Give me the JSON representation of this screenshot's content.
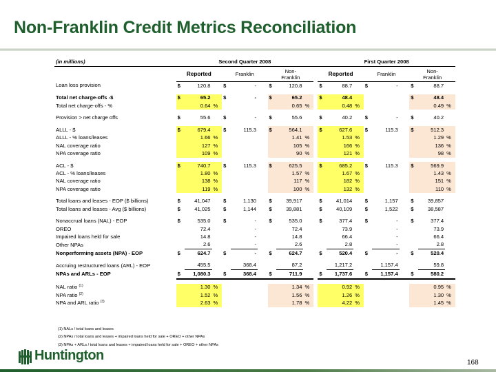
{
  "slide": {
    "title": "Non-Franklin Credit Metrics Reconciliation",
    "page_number": "168",
    "logo_text": "Huntington"
  },
  "table": {
    "units_label": "(in millions)",
    "period_headers": [
      "Second Quarter 2008",
      "First Quarter 2008"
    ],
    "column_headers": [
      "Reported",
      "Franklin",
      "Non-\nFranklin",
      "Reported",
      "Franklin",
      "Non-\nFranklin"
    ],
    "rows": [
      {
        "label": "Loan loss provision",
        "bold": false,
        "cells": [
          [
            "$",
            "120.8",
            ""
          ],
          [
            "$",
            "-",
            ""
          ],
          [
            "$",
            "120.8",
            ""
          ],
          [
            "$",
            "88.7",
            ""
          ],
          [
            "$",
            "-",
            ""
          ],
          [
            "$",
            "88.7",
            ""
          ]
        ],
        "hl": [
          false,
          false,
          false,
          false,
          false,
          false
        ]
      },
      {
        "spacer": true
      },
      {
        "label": "Total net charge-offs -$",
        "bold": true,
        "cells": [
          [
            "$",
            "65.2",
            ""
          ],
          [
            "$",
            "-",
            ""
          ],
          [
            "$",
            "65.2",
            ""
          ],
          [
            "$",
            "48.4",
            ""
          ],
          [
            "",
            "",
            ""
          ],
          [
            "$",
            "48.4",
            ""
          ]
        ],
        "hl": [
          "hl",
          false,
          "pk",
          "hl",
          false,
          "pk"
        ]
      },
      {
        "label": "Total net charge-offs - %",
        "bold": false,
        "cells": [
          [
            "",
            "0.64",
            "%"
          ],
          [
            "",
            "",
            ""
          ],
          [
            "",
            "0.65",
            "%"
          ],
          [
            "",
            "0.48",
            "%"
          ],
          [
            "",
            "",
            ""
          ],
          [
            "",
            "0.49",
            "%"
          ]
        ],
        "hl": [
          "hl",
          false,
          "pk",
          "hl",
          false,
          "pk"
        ]
      },
      {
        "spacer": true
      },
      {
        "label": "Provision > net charge offs",
        "bold": false,
        "cells": [
          [
            "$",
            "55.6",
            ""
          ],
          [
            "$",
            "-",
            ""
          ],
          [
            "$",
            "55.6",
            ""
          ],
          [
            "$",
            "40.2",
            ""
          ],
          [
            "$",
            "-",
            ""
          ],
          [
            "$",
            "40.2",
            ""
          ]
        ],
        "hl": [
          false,
          false,
          false,
          false,
          false,
          false
        ]
      },
      {
        "spacer": true
      },
      {
        "label": "ALLL - $",
        "bold": false,
        "cells": [
          [
            "$",
            "679.4",
            ""
          ],
          [
            "$",
            "115.3",
            ""
          ],
          [
            "$",
            "564.1",
            ""
          ],
          [
            "$",
            "627.6",
            ""
          ],
          [
            "$",
            "115.3",
            ""
          ],
          [
            "$",
            "512.3",
            ""
          ]
        ],
        "hl": [
          "hl",
          false,
          "pk",
          "hl",
          false,
          "pk"
        ]
      },
      {
        "label": "ALLL - % loans/leases",
        "bold": false,
        "cells": [
          [
            "",
            "1.66",
            "%"
          ],
          [
            "",
            "",
            ""
          ],
          [
            "",
            "1.41",
            "%"
          ],
          [
            "",
            "1.53",
            "%"
          ],
          [
            "",
            "",
            ""
          ],
          [
            "",
            "1.29",
            "%"
          ]
        ],
        "hl": [
          "hl",
          false,
          "pk",
          "hl",
          false,
          "pk"
        ]
      },
      {
        "label": "NAL coverage ratio",
        "bold": false,
        "cells": [
          [
            "",
            "127",
            "%"
          ],
          [
            "",
            "",
            ""
          ],
          [
            "",
            "105",
            "%"
          ],
          [
            "",
            "166",
            "%"
          ],
          [
            "",
            "",
            ""
          ],
          [
            "",
            "136",
            "%"
          ]
        ],
        "hl": [
          "hl",
          false,
          "pk",
          "hl",
          false,
          "pk"
        ]
      },
      {
        "label": "NPA coverage ratio",
        "bold": false,
        "cells": [
          [
            "",
            "109",
            "%"
          ],
          [
            "",
            "",
            ""
          ],
          [
            "",
            "90",
            "%"
          ],
          [
            "",
            "121",
            "%"
          ],
          [
            "",
            "",
            ""
          ],
          [
            "",
            "98",
            "%"
          ]
        ],
        "hl": [
          "hl",
          false,
          "pk",
          "hl",
          false,
          "pk"
        ]
      },
      {
        "spacer": true
      },
      {
        "label": "ACL - $",
        "bold": false,
        "cells": [
          [
            "$",
            "740.7",
            ""
          ],
          [
            "$",
            "115.3",
            ""
          ],
          [
            "$",
            "625.5",
            ""
          ],
          [
            "$",
            "685.2",
            ""
          ],
          [
            "$",
            "115.3",
            ""
          ],
          [
            "$",
            "569.9",
            ""
          ]
        ],
        "hl": [
          "hl",
          false,
          "pk",
          "hl",
          false,
          "pk"
        ]
      },
      {
        "label": "ACL - % loans/leases",
        "bold": false,
        "cells": [
          [
            "",
            "1.80",
            "%"
          ],
          [
            "",
            "",
            ""
          ],
          [
            "",
            "1.57",
            "%"
          ],
          [
            "",
            "1.67",
            "%"
          ],
          [
            "",
            "",
            ""
          ],
          [
            "",
            "1.43",
            "%"
          ]
        ],
        "hl": [
          "hl",
          false,
          "pk",
          "hl",
          false,
          "pk"
        ]
      },
      {
        "label": "NAL coverage ratio",
        "bold": false,
        "cells": [
          [
            "",
            "138",
            "%"
          ],
          [
            "",
            "",
            ""
          ],
          [
            "",
            "117",
            "%"
          ],
          [
            "",
            "182",
            "%"
          ],
          [
            "",
            "",
            ""
          ],
          [
            "",
            "151",
            "%"
          ]
        ],
        "hl": [
          "hl",
          false,
          "pk",
          "hl",
          false,
          "pk"
        ]
      },
      {
        "label": "NPA coverage ratio",
        "bold": false,
        "cells": [
          [
            "",
            "119",
            "%"
          ],
          [
            "",
            "",
            ""
          ],
          [
            "",
            "100",
            "%"
          ],
          [
            "",
            "132",
            "%"
          ],
          [
            "",
            "",
            ""
          ],
          [
            "",
            "110",
            "%"
          ]
        ],
        "hl": [
          "hl",
          false,
          "pk",
          "hl",
          false,
          "pk"
        ]
      },
      {
        "spacer": true
      },
      {
        "label": "Total loans and leases - EOP ($ billions)",
        "bold": false,
        "cells": [
          [
            "$",
            "41,047",
            ""
          ],
          [
            "$",
            "1,130",
            ""
          ],
          [
            "$",
            "39,917",
            ""
          ],
          [
            "$",
            "41,014",
            ""
          ],
          [
            "$",
            "1,157",
            ""
          ],
          [
            "$",
            "39,857",
            ""
          ]
        ],
        "hl": [
          false,
          false,
          false,
          false,
          false,
          false
        ]
      },
      {
        "label": "Total loans and leases - Avg ($ billions)",
        "bold": false,
        "cells": [
          [
            "$",
            "41,025",
            ""
          ],
          [
            "$",
            "1,144",
            ""
          ],
          [
            "$",
            "39,881",
            ""
          ],
          [
            "$",
            "40,109",
            ""
          ],
          [
            "$",
            "1,522",
            ""
          ],
          [
            "$",
            "38,587",
            ""
          ]
        ],
        "hl": [
          false,
          false,
          false,
          false,
          false,
          false
        ]
      },
      {
        "spacer": true
      },
      {
        "label": "Nonaccrual loans (NAL) - EOP",
        "bold": false,
        "cells": [
          [
            "$",
            "535.0",
            ""
          ],
          [
            "$",
            "-",
            ""
          ],
          [
            "$",
            "535.0",
            ""
          ],
          [
            "$",
            "377.4",
            ""
          ],
          [
            "$",
            "-",
            ""
          ],
          [
            "$",
            "377.4",
            ""
          ]
        ],
        "hl": [
          false,
          false,
          false,
          false,
          false,
          false
        ]
      },
      {
        "label": "OREO",
        "bold": false,
        "cells": [
          [
            "",
            "72.4",
            ""
          ],
          [
            "",
            "-",
            ""
          ],
          [
            "",
            "72.4",
            ""
          ],
          [
            "",
            "73.9",
            ""
          ],
          [
            "",
            "-",
            ""
          ],
          [
            "",
            "73.9",
            ""
          ]
        ],
        "hl": [
          false,
          false,
          false,
          false,
          false,
          false
        ]
      },
      {
        "label": "Impaired loans held for sale",
        "bold": false,
        "cells": [
          [
            "",
            "14.8",
            ""
          ],
          [
            "",
            "-",
            ""
          ],
          [
            "",
            "14.8",
            ""
          ],
          [
            "",
            "66.4",
            ""
          ],
          [
            "",
            "-",
            ""
          ],
          [
            "",
            "66.4",
            ""
          ]
        ],
        "hl": [
          false,
          false,
          false,
          false,
          false,
          false
        ]
      },
      {
        "label": "Other NPAs",
        "bold": false,
        "underline": true,
        "cells": [
          [
            "",
            "2.6",
            ""
          ],
          [
            "",
            "-",
            ""
          ],
          [
            "",
            "2.6",
            ""
          ],
          [
            "",
            "2.8",
            ""
          ],
          [
            "",
            "-",
            ""
          ],
          [
            "",
            "2.8",
            ""
          ]
        ],
        "hl": [
          false,
          false,
          false,
          false,
          false,
          false
        ]
      },
      {
        "label": "Nonperforming assets (NPA) - EOP",
        "bold": true,
        "cells": [
          [
            "$",
            "624.7",
            ""
          ],
          [
            "$",
            "-",
            ""
          ],
          [
            "$",
            "624.7",
            ""
          ],
          [
            "$",
            "520.4",
            ""
          ],
          [
            "$",
            "-",
            ""
          ],
          [
            "$",
            "520.4",
            ""
          ]
        ],
        "hl": [
          false,
          false,
          false,
          false,
          false,
          false
        ]
      },
      {
        "spacer": true
      },
      {
        "label": "Accruing restructured loans (ARL) - EOP",
        "bold": false,
        "underline": true,
        "cells": [
          [
            "",
            "455.5",
            ""
          ],
          [
            "",
            "368.4",
            ""
          ],
          [
            "",
            "87.2",
            ""
          ],
          [
            "",
            "1,217.2",
            ""
          ],
          [
            "",
            "1,157.4",
            ""
          ],
          [
            "",
            "59.8",
            ""
          ]
        ],
        "hl": [
          false,
          false,
          false,
          false,
          false,
          false
        ]
      },
      {
        "label": "NPAs and ARLs - EOP",
        "bold": true,
        "double": true,
        "cells": [
          [
            "$",
            "1,080.3",
            ""
          ],
          [
            "$",
            "368.4",
            ""
          ],
          [
            "$",
            "711.9",
            ""
          ],
          [
            "$",
            "1,737.6",
            ""
          ],
          [
            "$",
            "1,157.4",
            ""
          ],
          [
            "$",
            "580.2",
            ""
          ]
        ],
        "hl": [
          false,
          false,
          false,
          false,
          false,
          false
        ]
      },
      {
        "spacer": true
      },
      {
        "label": "NAL ratio",
        "sup": "(1)",
        "bold": false,
        "cells": [
          [
            "",
            "1.30",
            "%"
          ],
          [
            "",
            "",
            ""
          ],
          [
            "",
            "1.34",
            "%"
          ],
          [
            "",
            "0.92",
            "%"
          ],
          [
            "",
            "",
            ""
          ],
          [
            "",
            "0.95",
            "%"
          ]
        ],
        "hl": [
          "hl",
          false,
          "pk",
          "hl",
          false,
          "pk"
        ]
      },
      {
        "label": "NPA ratio",
        "sup": "(2)",
        "bold": false,
        "cells": [
          [
            "",
            "1.52",
            "%"
          ],
          [
            "",
            "",
            ""
          ],
          [
            "",
            "1.56",
            "%"
          ],
          [
            "",
            "1.26",
            "%"
          ],
          [
            "",
            "",
            ""
          ],
          [
            "",
            "1.30",
            "%"
          ]
        ],
        "hl": [
          "hl",
          false,
          "pk",
          "hl",
          false,
          "pk"
        ]
      },
      {
        "label": "NPA and ARL ratio",
        "sup": "(3)",
        "bold": false,
        "cells": [
          [
            "",
            "2.63",
            "%"
          ],
          [
            "",
            "",
            ""
          ],
          [
            "",
            "1.78",
            "%"
          ],
          [
            "",
            "4.22",
            "%"
          ],
          [
            "",
            "",
            ""
          ],
          [
            "",
            "1.45",
            "%"
          ]
        ],
        "hl": [
          "hl",
          false,
          "pk",
          "hl",
          false,
          "pk"
        ]
      }
    ]
  },
  "footnotes": [
    "(1) NALs / total loans and leases",
    "(2) NPAs / total loans and leases + impaired loans held for sale + OREO + other NPAs",
    "(3) NPAs + ARLs / total loans and leases + impaired loans held for sale + OREO + other NPAs"
  ],
  "colors": {
    "title_green": "#1f5f2d",
    "highlight_yellow": "#ffff66",
    "highlight_peach": "#fce6d4"
  },
  "icons": {
    "logo_mark": "huntington-logo-icon"
  }
}
